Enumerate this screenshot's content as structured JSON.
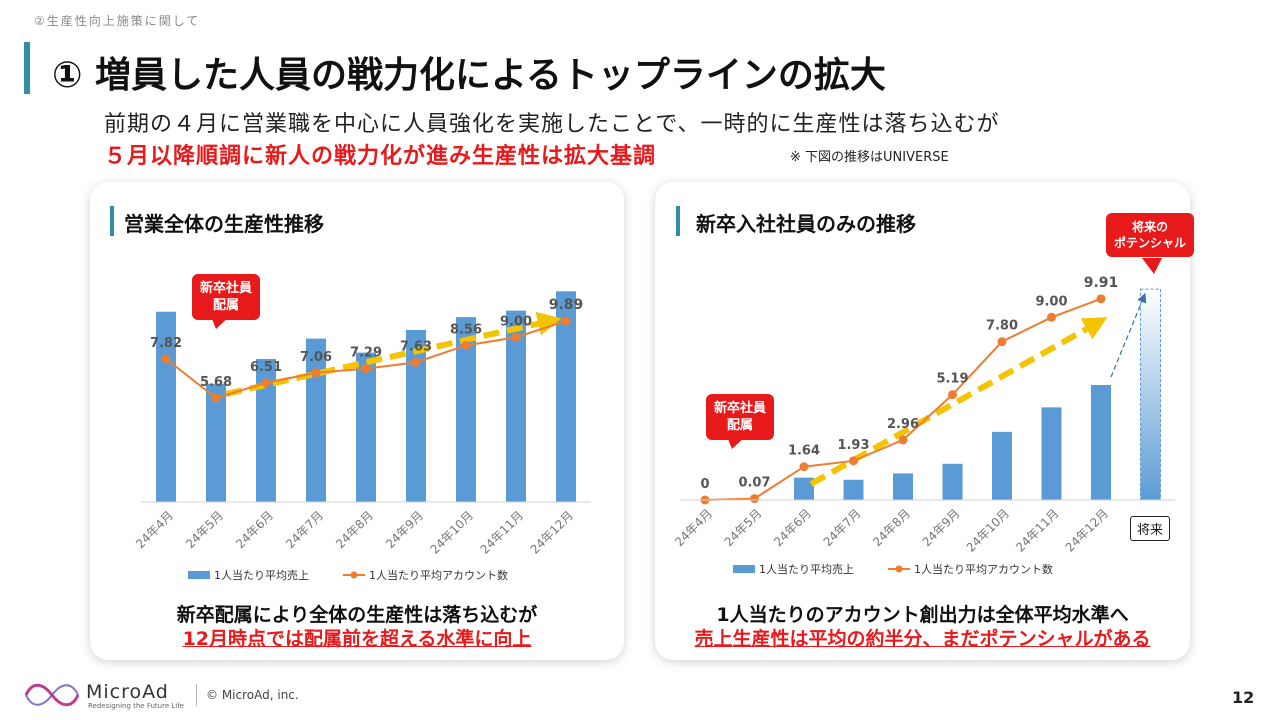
{
  "header": {
    "section_label": "②生産性向上施策に関して",
    "title": "① 増員した人員の戦力化によるトップラインの拡大",
    "lead_line1": "前期の４月に営業職を中心に人員強化を実施したことで、一時的に生産性は落ち込むが",
    "lead_line2": "５月以降順調に新人の戦力化が進み生産性は拡大基調",
    "note": "※ 下図の推移はUNIVERSE"
  },
  "left_panel": {
    "title": "営業全体の生産性推移",
    "callout": [
      "新卒社員",
      "配属"
    ],
    "conclusion_line1": "新卒配属により全体の生産性は落ち込むが",
    "conclusion_line2": "12月時点では配属前を超える水準に向上"
  },
  "right_panel": {
    "title": "新卒入社社員のみの推移",
    "callout": [
      "新卒社員",
      "配属"
    ],
    "future_callout": [
      "将来の",
      "ポテンシャル"
    ],
    "future_label": "将来",
    "conclusion_line1": "1人当たりのアカウント創出力は全体平均水準へ",
    "conclusion_line2": "売上生産性は平均の約半分、まだポテンシャルがある"
  },
  "chart_data": [
    {
      "type": "bar+line",
      "title": "営業全体の生産性推移",
      "categories": [
        "24年4月",
        "24年5月",
        "24年6月",
        "24年7月",
        "24年8月",
        "24年9月",
        "24年10月",
        "24年11月",
        "24年12月"
      ],
      "series": [
        {
          "name": "1人当たり平均売上",
          "kind": "bar",
          "color": "#5b9bd5",
          "values": [
            8.85,
            5.5,
            6.65,
            7.6,
            6.95,
            8.0,
            8.6,
            8.9,
            9.8
          ]
        },
        {
          "name": "1人当たり平均アカウント数",
          "kind": "line",
          "color": "#ed7d31",
          "values": [
            7.82,
            5.68,
            6.51,
            7.06,
            7.29,
            7.63,
            8.56,
            9.0,
            9.89
          ],
          "labels": [
            "7.82",
            "5.68",
            "6.51",
            "7.06",
            "7.29",
            "7.63",
            "8.56",
            "9.00",
            "9.89"
          ]
        }
      ],
      "trend_arrow_color": "#f5c400",
      "legend": "bottom"
    },
    {
      "type": "bar+line",
      "title": "新卒入社社員のみの推移",
      "categories": [
        "24年4月",
        "24年5月",
        "24年6月",
        "24年7月",
        "24年8月",
        "24年9月",
        "24年10月",
        "24年11月",
        "24年12月"
      ],
      "future_category": "将来",
      "series": [
        {
          "name": "1人当たり平均売上",
          "kind": "bar",
          "color": "#5b9bd5",
          "values": [
            0,
            0,
            1.05,
            0.95,
            1.25,
            1.7,
            3.2,
            4.35,
            5.4
          ]
        },
        {
          "name": "1人当たり平均アカウント数",
          "kind": "line",
          "color": "#ed7d31",
          "values": [
            0,
            0.07,
            1.64,
            1.93,
            2.96,
            5.19,
            7.8,
            9.0,
            9.91
          ],
          "labels": [
            "0",
            "0.07",
            "1.64",
            "1.93",
            "2.96",
            "5.19",
            "7.80",
            "9.00",
            "9.91"
          ]
        }
      ],
      "future_bar_value": 9.9,
      "trend_arrow_color": "#f5c400",
      "legend": "bottom"
    }
  ],
  "footer": {
    "brand": "MicroAd",
    "tagline": "Redesigning the Future Life",
    "copyright": "© MicroAd, inc.",
    "page_number": "12"
  },
  "colors": {
    "accent": "#2f8fa8",
    "emphasis": "#e8191b",
    "bar": "#5b9bd5",
    "line": "#ed7d31",
    "arrow": "#f5c400"
  }
}
